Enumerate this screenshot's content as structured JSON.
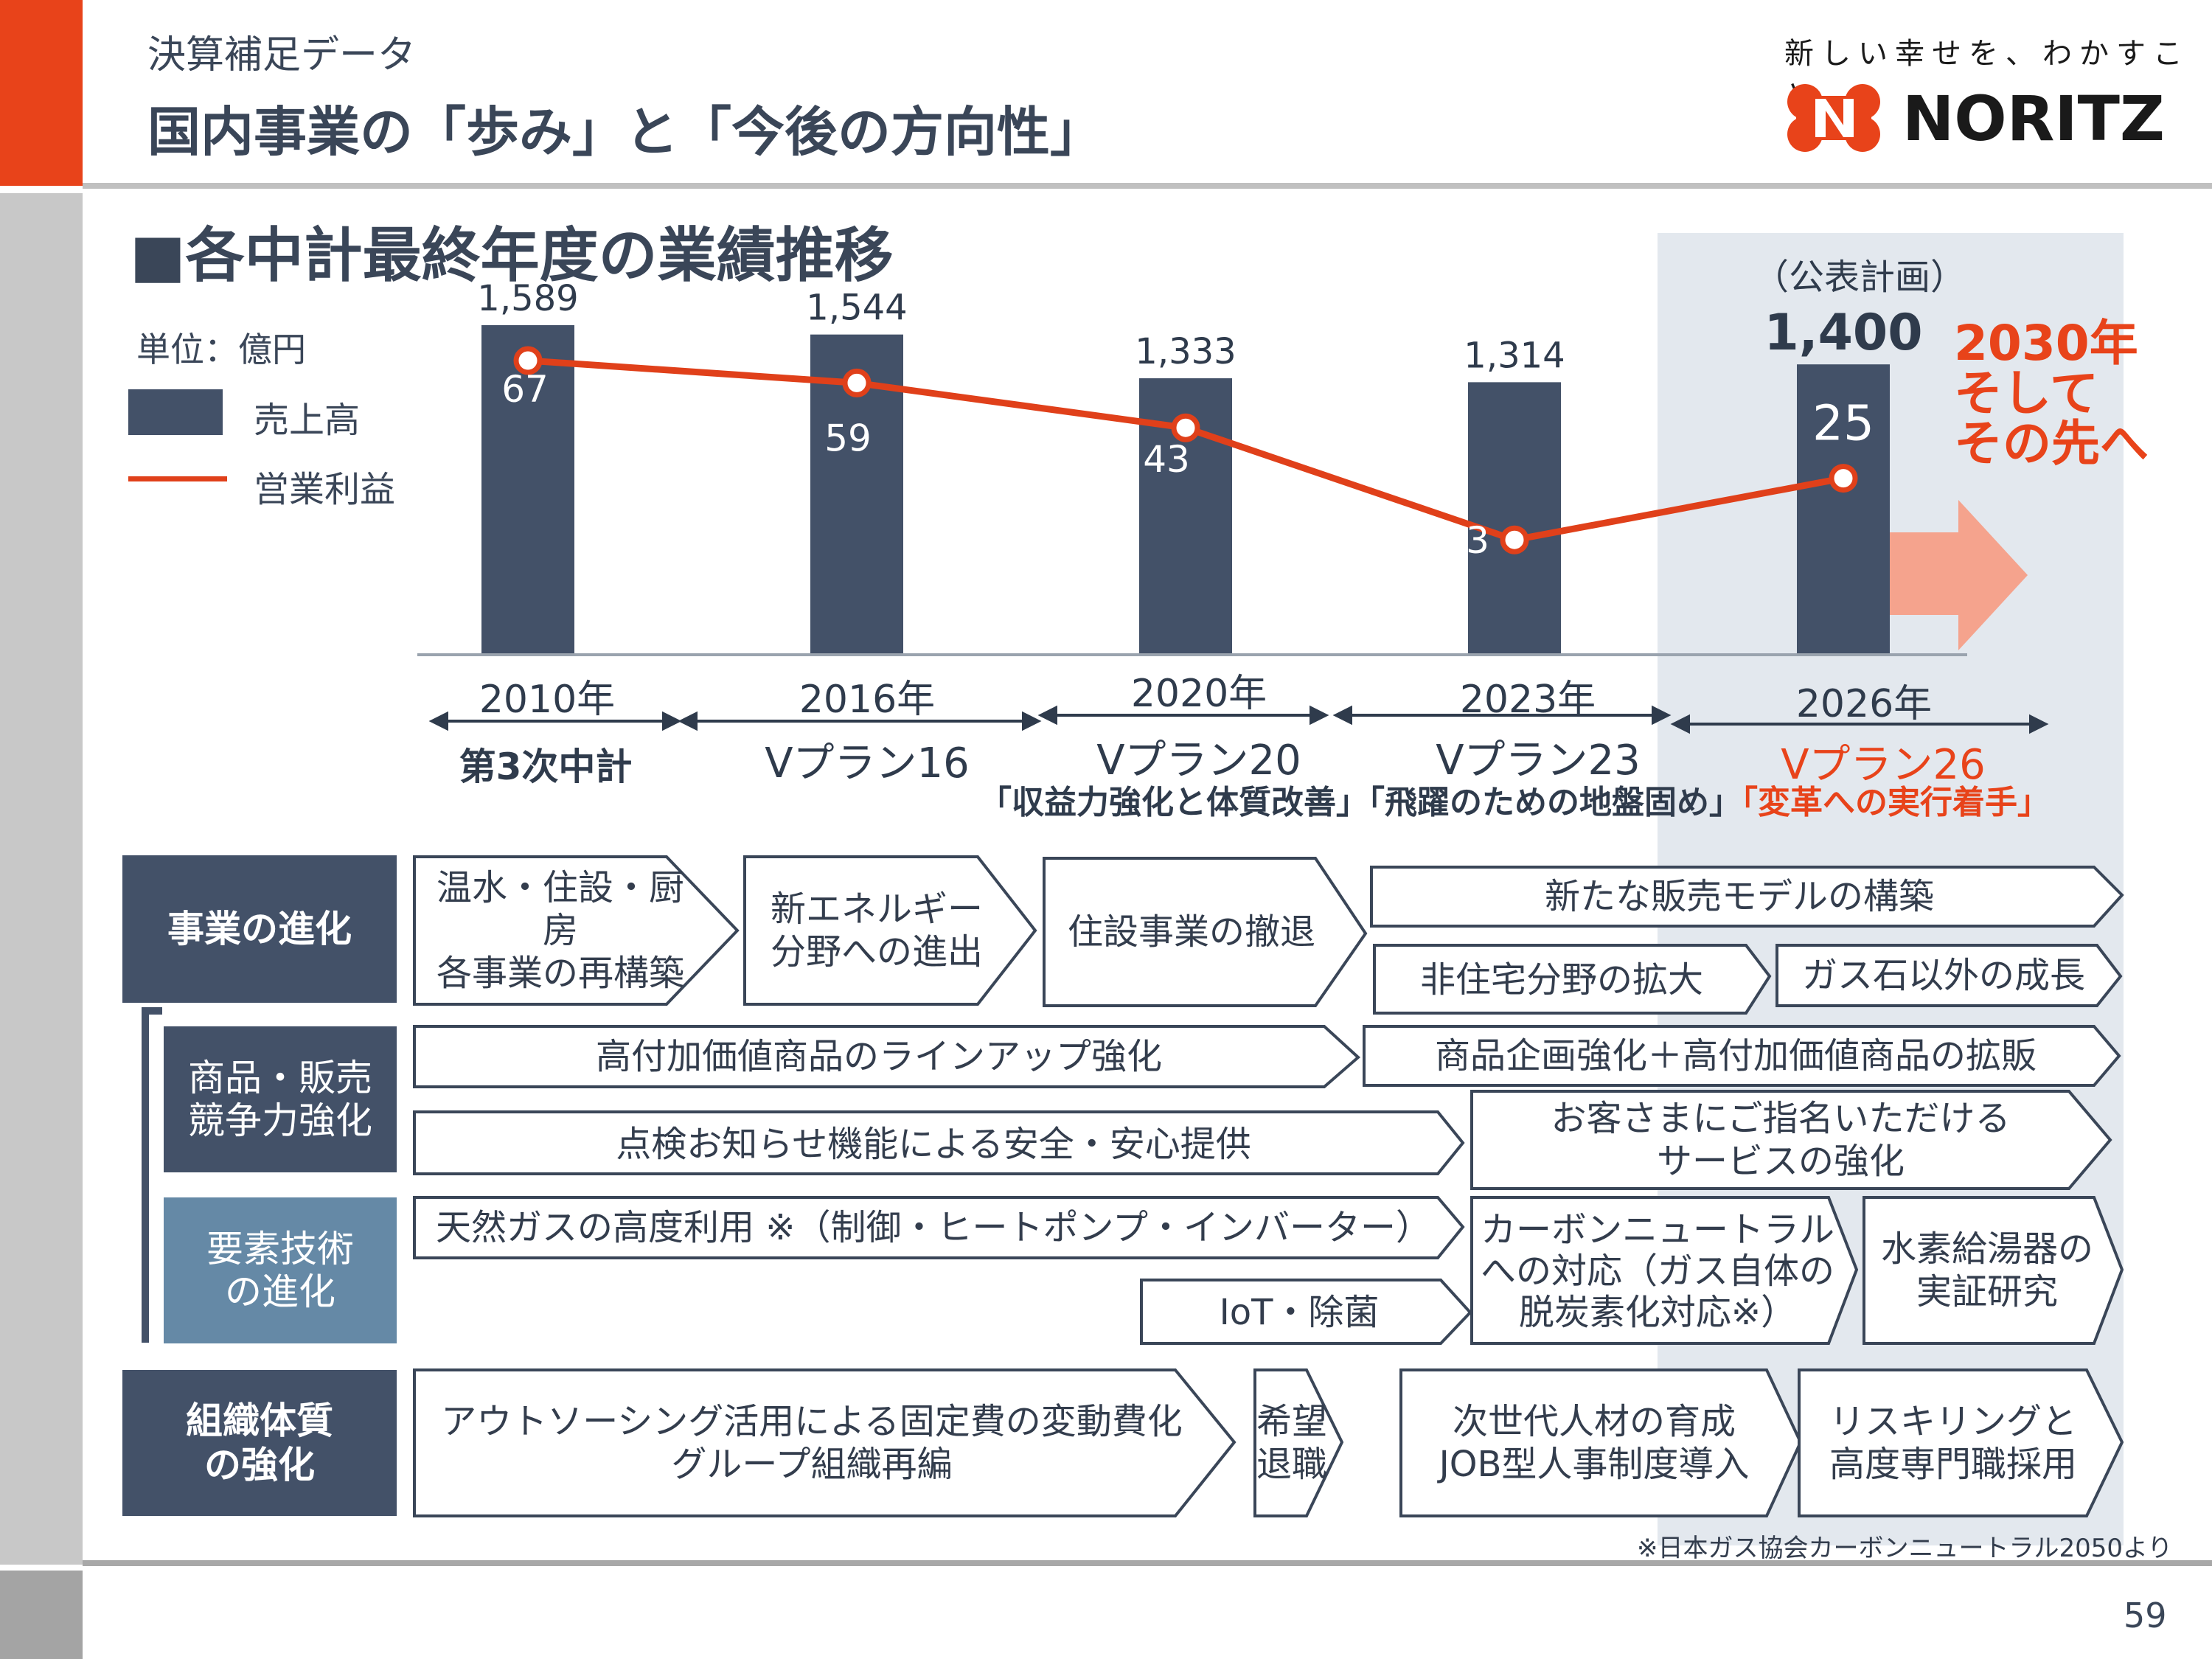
{
  "header": {
    "subtitle": "決算補足データ",
    "title": "国内事業の「歩み」と「今後の方向性」",
    "slogan": "新しい幸せを、わかすこと。",
    "brand": "NORITZ"
  },
  "section_title": "■各中計最終年度の業績推移",
  "legend": {
    "unit": "単位：億円",
    "sales": "売上高",
    "profit": "営業利益"
  },
  "plan_note": "（公表計画）",
  "future_text": "2030年\nそして\nその先へ",
  "colors": {
    "bar": "#435168",
    "line": "#e0401a",
    "accent": "#e8431a",
    "arrow": "#f5a38d",
    "plan_background": "#e3e8ee"
  },
  "chart_data": {
    "type": "bar",
    "categories": [
      "2010年",
      "2016年",
      "2020年",
      "2023年",
      "2026年"
    ],
    "series": [
      {
        "name": "売上高",
        "type": "bar",
        "values": [
          1589,
          1544,
          1333,
          1314,
          1400
        ],
        "labels": [
          "1,589",
          "1,544",
          "1,333",
          "1,314",
          "1,400"
        ]
      },
      {
        "name": "営業利益",
        "type": "line",
        "values": [
          67,
          59,
          43,
          3,
          25
        ],
        "labels": [
          "67",
          "59",
          "43",
          "3",
          "25"
        ]
      }
    ],
    "ylabel": "単位：億円",
    "grid": false,
    "legend": "top-left"
  },
  "periods": [
    {
      "year": "2010年",
      "plan": "第3次中計"
    },
    {
      "year": "2016年",
      "plan": "Vプラン16"
    },
    {
      "year": "2020年",
      "plan": "Vプラン20"
    },
    {
      "year": "2023年",
      "plan": "Vプラン23"
    },
    {
      "year": "2026年",
      "plan": "Vプラン26"
    }
  ],
  "themes": {
    "v20": "「収益力強化と体質改善」",
    "v23": "「飛躍のための地盤固め」",
    "v26": "「変革への実行着手」"
  },
  "rows": {
    "business": {
      "header": "事業の進化",
      "items": [
        "温水・住設・厨房\n各事業の再構築",
        "新エネルギー\n分野への進出",
        "住設事業の撤退",
        "新たな販売モデルの構築",
        "非住宅分野の拡大",
        "ガス石以外の成長"
      ]
    },
    "product": {
      "header": "商品・販売\n競争力強化",
      "items": [
        "高付加価値商品のラインアップ強化",
        "商品企画強化＋高付加価値商品の拡販",
        "点検お知らせ機能による安全・安心提供",
        "お客さまにご指名いただける\nサービスの強化"
      ]
    },
    "tech": {
      "header": "要素技術\nの進化",
      "items": [
        "天然ガスの高度利用 ※（制御・ヒートポンプ・インバーター）",
        "IoT・除菌",
        "カーボンニュートラル\nへの対応（ガス自体の\n脱炭素化対応※）",
        "水素給湯器の\n実証研究"
      ]
    },
    "org": {
      "header": "組織体質\nの強化",
      "items": [
        "アウトソーシング活用による固定費の変動費化\nグループ組織再編",
        "希望\n退職",
        "次世代人材の育成\nJOB型人事制度導入",
        "リスキリングと\n高度専門職採用"
      ]
    }
  },
  "footnote": "※日本ガス協会カーボンニュートラル2050より",
  "page_number": "59"
}
